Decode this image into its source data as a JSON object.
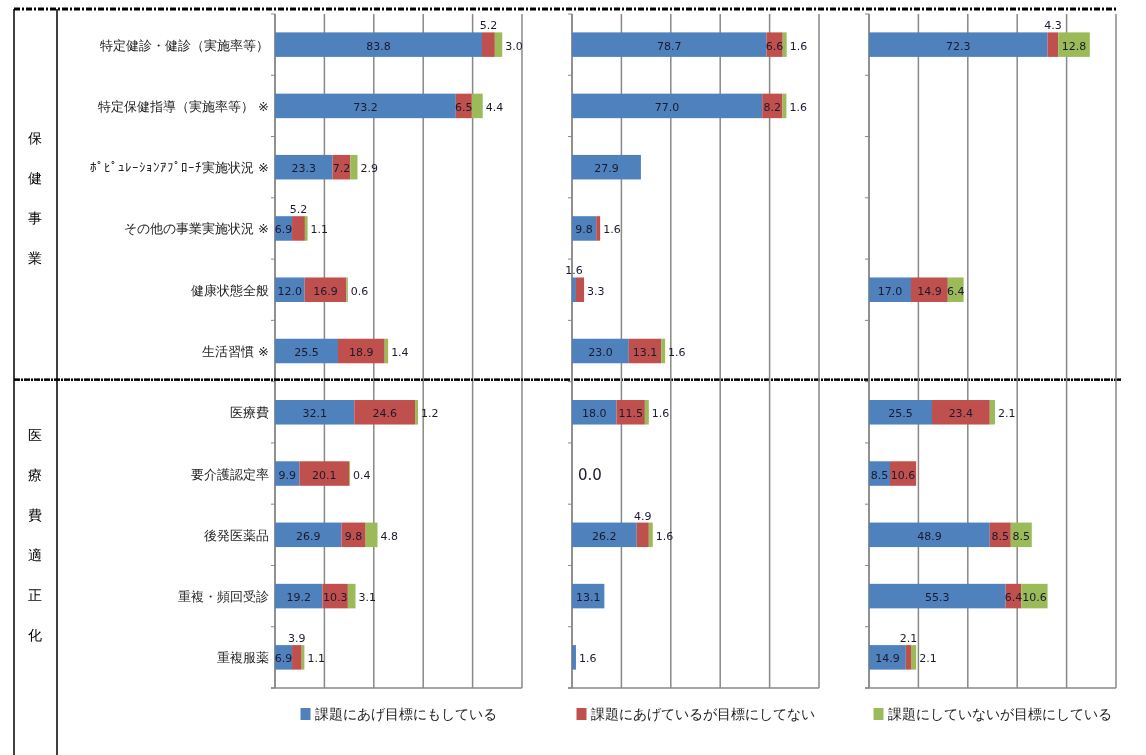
{
  "chart_data": [
    {
      "type": "bar",
      "orientation": "horizontal",
      "stacked": true,
      "legend": "bottom",
      "grid": "x",
      "xlim": [
        0,
        100
      ],
      "xticks": [
        {
          "value": 0,
          "label": null
        },
        {
          "value": 20,
          "label": null
        },
        {
          "value": 40,
          "label": null
        },
        {
          "value": 60,
          "label": null
        },
        {
          "value": 80,
          "label": null
        },
        {
          "value": 100,
          "label": null
        }
      ],
      "annotations": [
        "保健事業",
        "医療費適正化"
      ],
      "categories": [
        "特定健診・健診（実施率等）",
        "特定保健指導（実施率等） ※",
        "ﾎﾟﾋﾟｭﾚｰｼｮﾝｱﾌﾟﾛｰﾁ実施状況 ※",
        "その他の事業実施状況 ※",
        "健康状態全般",
        "生活習慣 ※",
        "医療費",
        "要介護認定率",
        "後発医薬品",
        "重複・頻回受診",
        "重複服薬"
      ],
      "series": [
        {
          "name": "課題にあげ目標にもしている",
          "color": "#4f81bd",
          "values": [
            83.8,
            73.2,
            23.3,
            6.9,
            12.0,
            25.5,
            32.1,
            9.9,
            26.9,
            19.2,
            6.9
          ],
          "value_labels": [
            "83.8",
            "73.2",
            "23.3",
            "6.9",
            "12.0",
            "25.5",
            "32.1",
            "9.9",
            "26.9",
            "19.2",
            "6.9"
          ]
        },
        {
          "name": "課題にあげているが目標にしてない",
          "color": "#c0504d",
          "values": [
            5.2,
            6.5,
            7.2,
            5.2,
            16.9,
            18.9,
            24.6,
            20.1,
            9.8,
            10.3,
            3.9
          ],
          "value_labels": [
            "5.2",
            "6.5",
            "7.2",
            "5.2",
            "16.9",
            "18.9",
            "24.6",
            "20.1",
            "9.8",
            "10.3",
            "3.9"
          ]
        },
        {
          "name": "課題にしていないが目標にしている",
          "color": "#9bbb59",
          "values": [
            3.0,
            4.4,
            2.9,
            1.1,
            0.6,
            1.4,
            1.2,
            0.4,
            4.8,
            3.1,
            1.1
          ],
          "value_labels": [
            "3.0",
            "4.4",
            "2.9",
            "1.1",
            "0.6",
            "1.4",
            "1.2",
            "0.4",
            "4.8",
            "3.1",
            "1.1"
          ]
        }
      ]
    },
    {
      "type": "bar",
      "orientation": "horizontal",
      "stacked": true,
      "grid": "x",
      "xlim": [
        0,
        100
      ],
      "xticks": [
        {
          "value": 0,
          "label": null
        },
        {
          "value": 20,
          "label": null
        },
        {
          "value": 40,
          "label": null
        },
        {
          "value": 60,
          "label": null
        },
        {
          "value": 80,
          "label": null
        },
        {
          "value": 100,
          "label": null
        }
      ],
      "categories": [
        null,
        null,
        null,
        null,
        null,
        null,
        null,
        null,
        null,
        null,
        null
      ],
      "series": [
        {
          "color": "#4f81bd",
          "values": [
            78.7,
            77.0,
            27.9,
            9.8,
            1.6,
            23.0,
            18.0,
            0,
            26.2,
            13.1,
            1.6
          ],
          "value_labels": [
            "78.7",
            "77.0",
            "27.9",
            "9.8",
            "1.6",
            "23.0",
            "18.0",
            "0.0",
            "26.2",
            "13.1",
            "1.6"
          ]
        },
        {
          "color": "#c0504d",
          "values": [
            6.6,
            8.2,
            null,
            1.6,
            3.3,
            13.1,
            11.5,
            null,
            4.9,
            null,
            null
          ],
          "value_labels": [
            "6.6",
            "8.2",
            null,
            "1.6",
            "3.3",
            "13.1",
            "11.5",
            null,
            "4.9",
            null,
            null
          ]
        },
        {
          "color": "#9bbb59",
          "values": [
            1.6,
            1.6,
            null,
            null,
            null,
            1.6,
            1.6,
            null,
            1.6,
            null,
            null
          ],
          "value_labels": [
            "1.6",
            "1.6",
            null,
            null,
            null,
            "1.6",
            "1.6",
            null,
            "1.6",
            null,
            null
          ]
        }
      ]
    },
    {
      "type": "bar",
      "orientation": "horizontal",
      "stacked": true,
      "grid": "x",
      "xlim": [
        0,
        100
      ],
      "xticks": [
        {
          "value": 0,
          "label": null
        },
        {
          "value": 20,
          "label": null
        },
        {
          "value": 40,
          "label": null
        },
        {
          "value": 60,
          "label": null
        },
        {
          "value": 80,
          "label": null
        },
        {
          "value": 100,
          "label": null
        }
      ],
      "categories": [
        null,
        null,
        null,
        null,
        null,
        null,
        null,
        null,
        null,
        null,
        null
      ],
      "series": [
        {
          "color": "#4f81bd",
          "values": [
            72.3,
            null,
            null,
            null,
            17.0,
            null,
            25.5,
            8.5,
            48.9,
            55.3,
            14.9
          ],
          "value_labels": [
            "72.3",
            null,
            null,
            null,
            "17.0",
            null,
            "25.5",
            "8.5",
            "48.9",
            "55.3",
            "14.9"
          ]
        },
        {
          "color": "#c0504d",
          "values": [
            4.3,
            null,
            null,
            null,
            14.9,
            null,
            23.4,
            10.6,
            8.5,
            6.4,
            2.1
          ],
          "value_labels": [
            "4.3",
            null,
            null,
            null,
            "14.9",
            null,
            "23.4",
            "10.6",
            "8.5",
            "6.4",
            "2.1"
          ]
        },
        {
          "color": "#9bbb59",
          "values": [
            12.8,
            null,
            null,
            null,
            6.4,
            null,
            2.1,
            null,
            8.5,
            10.6,
            2.1
          ],
          "value_labels": [
            "12.8",
            null,
            null,
            null,
            "6.4",
            null,
            "2.1",
            null,
            "8.5",
            "10.6",
            "2.1"
          ]
        }
      ]
    }
  ]
}
